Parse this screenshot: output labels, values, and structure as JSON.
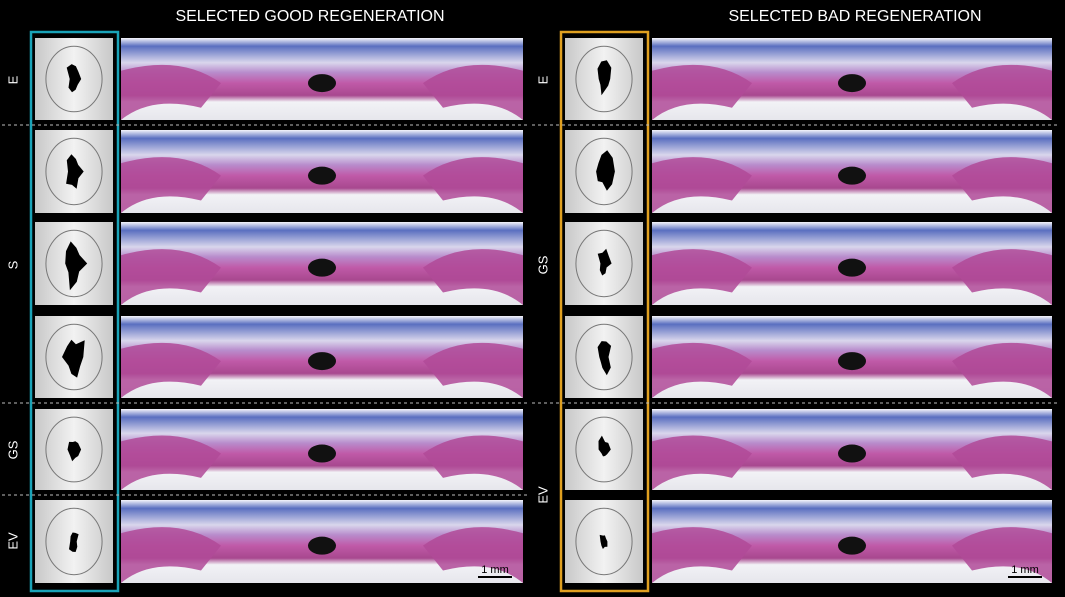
{
  "left": {
    "title": "SELECTED GOOD REGENERATION",
    "row_labels": [
      "E",
      "S",
      "GS",
      "EV"
    ],
    "scale_bar": "1 mm"
  },
  "right": {
    "title": "SELECTED BAD REGENERATION",
    "row_labels": [
      "E",
      "GS",
      "EV"
    ],
    "scale_bar": "1 mm"
  }
}
